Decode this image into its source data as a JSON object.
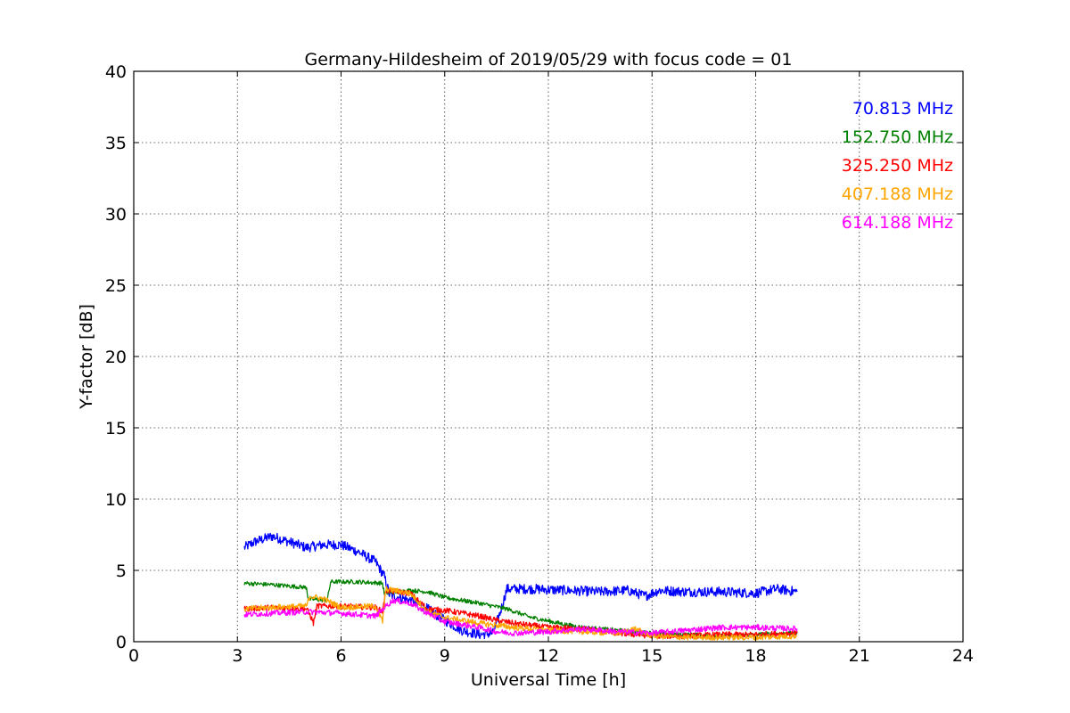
{
  "chart_data": {
    "type": "line",
    "title": "Germany-Hildesheim of 2019/05/29 with focus code = 01",
    "xlabel": "Universal Time [h]",
    "ylabel": "Y-factor [dB]",
    "xlim": [
      0,
      24
    ],
    "ylim": [
      0,
      40
    ],
    "xticks": [
      0,
      3,
      6,
      9,
      12,
      15,
      18,
      21,
      24
    ],
    "yticks": [
      0,
      5,
      10,
      15,
      20,
      25,
      30,
      35,
      40
    ],
    "grid": true,
    "legend_position": "top-right",
    "series": [
      {
        "name": "70.813 MHz",
        "color": "#0000ff",
        "noise": 0.35,
        "points": [
          [
            3.2,
            6.6
          ],
          [
            3.5,
            7.0
          ],
          [
            4.0,
            7.4
          ],
          [
            4.5,
            7.0
          ],
          [
            5.0,
            6.6
          ],
          [
            5.5,
            6.8
          ],
          [
            6.0,
            6.8
          ],
          [
            6.5,
            6.3
          ],
          [
            7.0,
            5.6
          ],
          [
            7.25,
            4.6
          ],
          [
            7.4,
            3.3
          ],
          [
            8.0,
            2.9
          ],
          [
            8.5,
            2.3
          ],
          [
            9.0,
            1.5
          ],
          [
            9.5,
            0.8
          ],
          [
            10.0,
            0.5
          ],
          [
            10.4,
            0.6
          ],
          [
            10.6,
            2.0
          ],
          [
            10.8,
            3.7
          ],
          [
            11.5,
            3.7
          ],
          [
            12.5,
            3.6
          ],
          [
            13.5,
            3.5
          ],
          [
            14.3,
            3.6
          ],
          [
            14.8,
            3.2
          ],
          [
            15.2,
            3.6
          ],
          [
            16.0,
            3.5
          ],
          [
            17.0,
            3.5
          ],
          [
            18.0,
            3.4
          ],
          [
            18.6,
            3.7
          ],
          [
            19.2,
            3.5
          ]
        ]
      },
      {
        "name": "152.750 MHz",
        "color": "#008000",
        "noise": 0.15,
        "points": [
          [
            3.2,
            4.1
          ],
          [
            4.0,
            4.0
          ],
          [
            5.0,
            3.8
          ],
          [
            5.05,
            3.0
          ],
          [
            5.6,
            2.9
          ],
          [
            5.7,
            4.2
          ],
          [
            6.5,
            4.2
          ],
          [
            7.2,
            4.1
          ],
          [
            7.25,
            3.4
          ],
          [
            8.0,
            3.6
          ],
          [
            8.5,
            3.5
          ],
          [
            9.0,
            3.1
          ],
          [
            10.0,
            2.7
          ],
          [
            10.8,
            2.3
          ],
          [
            11.5,
            1.7
          ],
          [
            12.5,
            1.2
          ],
          [
            13.0,
            1.0
          ],
          [
            14.0,
            0.8
          ],
          [
            15.0,
            0.6
          ],
          [
            16.0,
            0.5
          ],
          [
            17.0,
            0.4
          ],
          [
            18.0,
            0.5
          ],
          [
            19.2,
            0.6
          ]
        ]
      },
      {
        "name": "325.250 MHz",
        "color": "#ff0000",
        "noise": 0.2,
        "points": [
          [
            3.2,
            2.3
          ],
          [
            4.0,
            2.4
          ],
          [
            5.0,
            2.3
          ],
          [
            5.1,
            1.9
          ],
          [
            5.2,
            1.3
          ],
          [
            5.3,
            2.5
          ],
          [
            6.0,
            2.5
          ],
          [
            7.0,
            2.4
          ],
          [
            7.2,
            2.1
          ],
          [
            7.3,
            3.6
          ],
          [
            8.0,
            3.4
          ],
          [
            8.5,
            2.3
          ],
          [
            9.0,
            2.2
          ],
          [
            10.0,
            1.8
          ],
          [
            10.5,
            1.5
          ],
          [
            11.0,
            1.3
          ],
          [
            12.0,
            1.0
          ],
          [
            13.0,
            0.9
          ],
          [
            14.0,
            0.6
          ],
          [
            15.0,
            0.4
          ],
          [
            16.0,
            0.4
          ],
          [
            17.0,
            0.5
          ],
          [
            18.0,
            0.5
          ],
          [
            19.2,
            0.6
          ]
        ]
      },
      {
        "name": "407.188 MHz",
        "color": "#ffa500",
        "noise": 0.2,
        "points": [
          [
            3.2,
            2.3
          ],
          [
            4.0,
            2.4
          ],
          [
            5.0,
            2.5
          ],
          [
            5.1,
            3.2
          ],
          [
            5.5,
            3.0
          ],
          [
            6.0,
            2.4
          ],
          [
            7.0,
            2.5
          ],
          [
            7.2,
            1.4
          ],
          [
            7.3,
            3.7
          ],
          [
            8.0,
            3.4
          ],
          [
            8.5,
            2.1
          ],
          [
            9.0,
            1.7
          ],
          [
            10.0,
            1.3
          ],
          [
            11.0,
            1.0
          ],
          [
            12.0,
            0.8
          ],
          [
            13.0,
            0.7
          ],
          [
            14.0,
            0.6
          ],
          [
            14.5,
            0.9
          ],
          [
            15.0,
            0.4
          ],
          [
            16.0,
            0.3
          ],
          [
            17.0,
            0.3
          ],
          [
            18.0,
            0.3
          ],
          [
            19.2,
            0.4
          ]
        ]
      },
      {
        "name": "614.188 MHz",
        "color": "#ff00ff",
        "noise": 0.2,
        "points": [
          [
            3.2,
            1.9
          ],
          [
            4.0,
            2.0
          ],
          [
            5.0,
            2.1
          ],
          [
            6.0,
            2.0
          ],
          [
            7.0,
            1.8
          ],
          [
            7.3,
            2.5
          ],
          [
            7.5,
            2.9
          ],
          [
            8.0,
            2.7
          ],
          [
            8.5,
            2.0
          ],
          [
            9.0,
            1.4
          ],
          [
            10.0,
            1.0
          ],
          [
            10.5,
            0.7
          ],
          [
            11.0,
            0.6
          ],
          [
            12.0,
            0.7
          ],
          [
            13.0,
            0.9
          ],
          [
            14.0,
            0.7
          ],
          [
            15.0,
            0.6
          ],
          [
            16.0,
            0.8
          ],
          [
            17.0,
            1.0
          ],
          [
            18.0,
            1.0
          ],
          [
            19.2,
            0.9
          ]
        ]
      }
    ]
  }
}
